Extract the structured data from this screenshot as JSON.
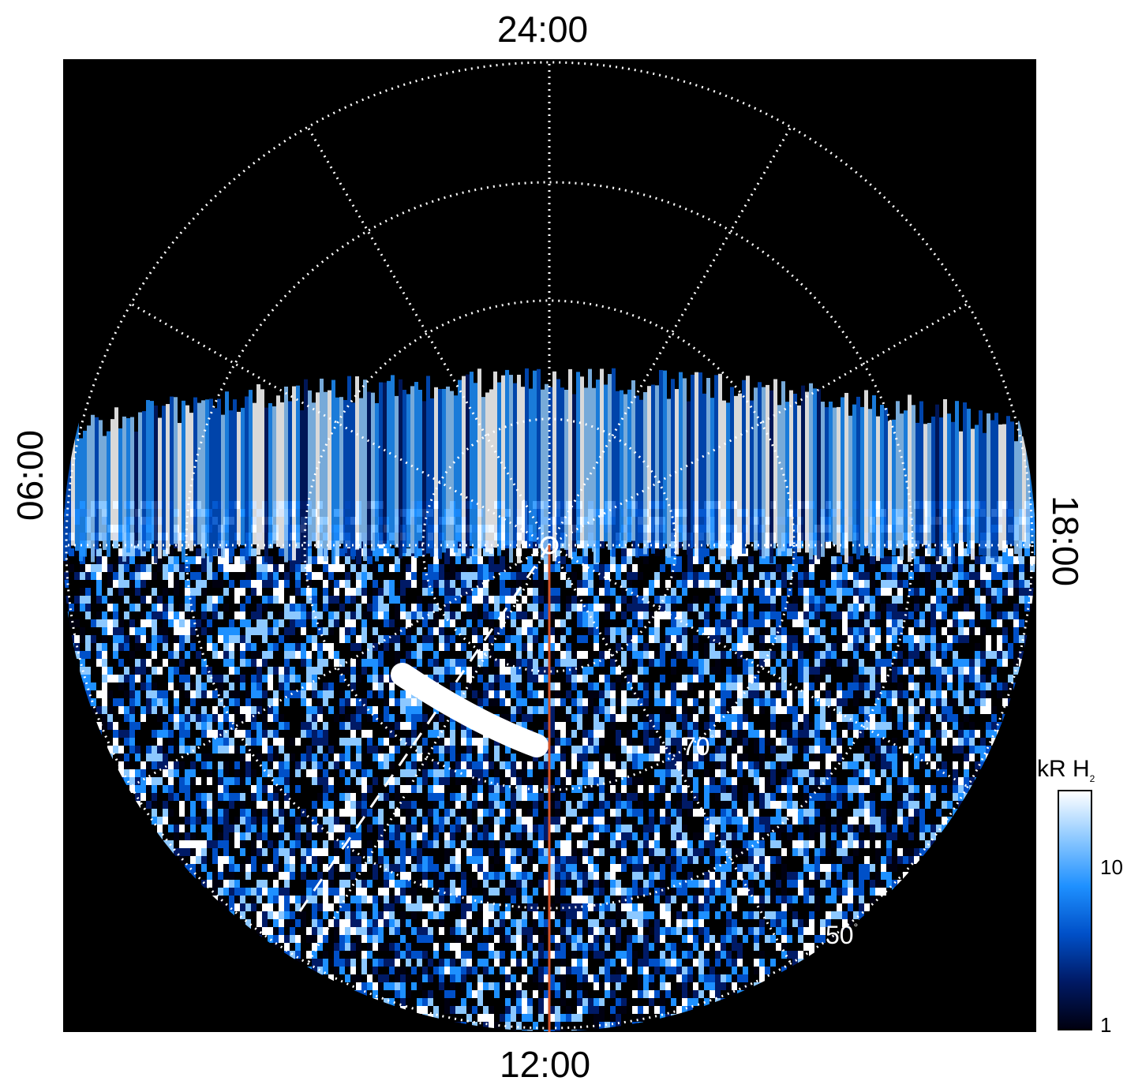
{
  "local_time_labels": {
    "top": "24:00",
    "bottom": "12:00",
    "left": "06:00",
    "right": "18:00"
  },
  "latitude_labels": {
    "inner": "70",
    "outer": "50",
    "degree_symbol": "°"
  },
  "colorbar": {
    "unit": "kR H",
    "unit_subscript": "2",
    "ticks": [
      "10",
      "1"
    ],
    "colors": [
      "#000010",
      "#001a66",
      "#0050c8",
      "#1e90ff",
      "#8cc8ff",
      "#ffffff"
    ]
  },
  "colors": {
    "background": "#000000",
    "grid": "#ffffff",
    "noon_meridian": "#d2522a"
  }
}
